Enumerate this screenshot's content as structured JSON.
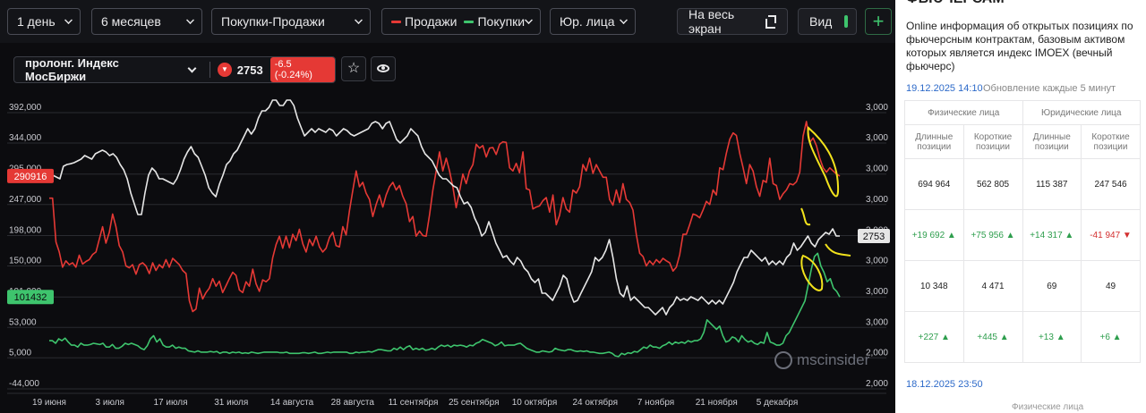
{
  "toolbar": {
    "period": "1 день",
    "range": "6 месяцев",
    "mode": "Покупки-Продажи",
    "legend_sell": "Продажи",
    "legend_buy": "Покупки",
    "entity": "Юр. лица",
    "fullscreen": "На весь экран",
    "view": "Вид",
    "add": "+"
  },
  "symbol": {
    "name": "пролонг. Индекс МосБиржи",
    "price": "2753",
    "change": "-6.5 (-0.24%)"
  },
  "colors": {
    "sell": "#e53935",
    "buy": "#3ec46d",
    "price": "#e6e6e6",
    "highlight": "#f2e21c"
  },
  "watermark": "mscinsider",
  "chart_data": {
    "type": "line",
    "x_ticks": [
      "19 июня",
      "3 июля",
      "17 июля",
      "31 июля",
      "14 августа",
      "28 августа",
      "11 сентября",
      "25 сентября",
      "10 октября",
      "24 октября",
      "7 ноября",
      "21 ноября",
      "5 декабря"
    ],
    "left_axis_ticks": [
      "392,000",
      "344,000",
      "295,000",
      "247,000",
      "198,000",
      "150,000",
      "101,000",
      "53,000",
      "5,000",
      "-44,000"
    ],
    "left_axis_values": [
      392000,
      344000,
      295000,
      247000,
      198000,
      150000,
      101000,
      53000,
      5000,
      -44000
    ],
    "right_axis_ticks": [
      "3,000",
      "3,000",
      "3,000",
      "3,000",
      "3,000",
      "3,000",
      "3,000",
      "3,000",
      "2,000",
      "2,000"
    ],
    "ylim_left": [
      -44000,
      392000
    ],
    "price_ylim": [
      2400,
      3150
    ],
    "labels": {
      "sell_last": "290916",
      "buy_last": "101432",
      "price_last": "2753"
    },
    "series": [
      {
        "name": "Продажи",
        "axis": "left",
        "values": [
          257000,
          257000,
          188000,
          172000,
          148000,
          158000,
          152000,
          155000,
          148000,
          167000,
          153000,
          157000,
          160000,
          168000,
          172000,
          192000,
          212000,
          186000,
          203000,
          232000,
          212000,
          182000,
          172000,
          150000,
          147000,
          152000,
          137000,
          152000,
          155000,
          150000,
          138000,
          155000,
          143000,
          152000,
          147000,
          160000,
          148000,
          162000,
          157000,
          152000,
          143000,
          138000,
          95000,
          78000,
          82000,
          115000,
          98000,
          108000,
          115000,
          130000,
          118000,
          126000,
          108000,
          119000,
          130000,
          140000,
          135000,
          112000,
          108000,
          125000,
          118000,
          145000,
          122000,
          110000,
          128000,
          125000,
          130000,
          163000,
          184000,
          197000,
          178000,
          197000,
          179000,
          200000,
          190000,
          208000,
          185000,
          172000,
          192000,
          182000,
          197000,
          180000,
          172000,
          178000,
          195000,
          203000,
          182000,
          180000,
          212000,
          199000,
          237000,
          269000,
          300000,
          275000,
          282000,
          265000,
          255000,
          228000,
          247000,
          262000,
          243000,
          262000,
          275000,
          282000,
          270000,
          277000,
          260000,
          248000,
          220000,
          228000,
          197000,
          205000,
          198000,
          197000,
          230000,
          270000,
          300000,
          330000,
          300000,
          320000,
          300000,
          275000,
          242000,
          268000,
          295000,
          280000,
          300000,
          310000,
          342000,
          336000,
          340000,
          322000,
          336000,
          337000,
          326000,
          342000,
          346000,
          345000,
          305000,
          300000,
          312000,
          297000,
          330000,
          272000,
          270000,
          240000,
          243000,
          245000,
          253000,
          258000,
          235000,
          262000,
          215000,
          230000,
          258000,
          240000,
          235000,
          270000,
          265000,
          275000,
          310000,
          300000,
          320000,
          296000,
          310000,
          300000,
          290000,
          290000,
          255000,
          246000,
          270000,
          250000,
          280000,
          255000,
          250000,
          238000,
          200000,
          170000,
          165000,
          150000,
          158000,
          152000,
          160000,
          155000,
          162000,
          158000,
          155000,
          142000,
          148000,
          168000,
          200000,
          200000,
          215000,
          232000,
          230000,
          226000,
          238000,
          252000,
          247000,
          270000,
          262000,
          305000,
          302000,
          328000,
          350000,
          360000,
          356000,
          328000,
          305000,
          280000,
          310000,
          300000,
          275000,
          260000,
          285000,
          282000,
          320000,
          280000,
          277000,
          255000,
          264000,
          270000,
          280000,
          278000,
          283000,
          298000,
          355000,
          378000,
          345000,
          352000,
          340000,
          320000,
          305000,
          298000,
          305000,
          300000,
          295000,
          292000
        ]
      },
      {
        "name": "Покупки",
        "axis": "left",
        "values": [
          32000,
          32000,
          28000,
          35000,
          32000,
          36000,
          30000,
          25000,
          25000,
          22000,
          28000,
          25000,
          25000,
          26000,
          28000,
          27000,
          26000,
          28000,
          22000,
          22000,
          26000,
          20000,
          20000,
          23000,
          28000,
          26000,
          28000,
          26000,
          24000,
          20000,
          18000,
          24000,
          35000,
          40000,
          30000,
          35000,
          25000,
          22000,
          22000,
          25000,
          20000,
          22000,
          20000,
          20000,
          16000,
          15000,
          14000,
          16000,
          14000,
          14000,
          14000,
          15000,
          14000,
          15000,
          12000,
          14000,
          14000,
          12000,
          14000,
          13000,
          14000,
          12000,
          13000,
          12000,
          14000,
          13000,
          12000,
          13000,
          14000,
          14000,
          14000,
          14000,
          14000,
          13000,
          13000,
          14000,
          12000,
          12000,
          12000,
          12000,
          13000,
          13000,
          12000,
          13000,
          14000,
          12000,
          12000,
          13000,
          14000,
          13000,
          14000,
          14000,
          14000,
          14000,
          14000,
          12000,
          12000,
          14000,
          13000,
          14000,
          14000,
          15000,
          14000,
          16000,
          18000,
          18000,
          17000,
          16000,
          16000,
          20000,
          18000,
          22000,
          18000,
          22000,
          24000,
          18000,
          20000,
          18000,
          20000,
          17000,
          18000,
          20000,
          18000,
          22000,
          25000,
          23000,
          25000,
          22000,
          25000,
          24000,
          25000,
          24000,
          22000,
          25000,
          24000,
          28000,
          30000,
          34000,
          32000,
          30000,
          28000,
          24000,
          26000,
          30000,
          24000,
          25000,
          25000,
          25000,
          27000,
          28000,
          24000,
          20000,
          18000,
          16000,
          14000,
          14000,
          16000,
          15000,
          14000,
          15000,
          20000,
          18000,
          17000,
          16000,
          18000,
          18000,
          16000,
          15000,
          16000,
          15000,
          16000,
          14000,
          14000,
          13000,
          12000,
          12000,
          13000,
          14000,
          12000,
          8000,
          7000,
          12000,
          10000,
          13000,
          12000,
          15000,
          14000,
          18000,
          22000,
          20000,
          25000,
          22000,
          22000,
          20000,
          24000,
          26000,
          30000,
          26000,
          30000,
          28000,
          30000,
          28000,
          32000,
          30000,
          32000,
          32000,
          35000,
          45000,
          65000,
          60000,
          55000,
          50000,
          55000,
          40000,
          30000,
          32000,
          38000,
          36000,
          30000,
          40000,
          34000,
          30000,
          32000,
          28000,
          26000,
          30000,
          28000,
          45000,
          30000,
          28000,
          25000,
          25000,
          28000,
          40000,
          45000,
          55000,
          65000,
          75000,
          85000,
          95000,
          120000,
          145000,
          165000,
          170000,
          150000,
          140000,
          125000,
          130000,
          115000,
          110000,
          101000
        ]
      },
      {
        "name": "price",
        "axis": "right",
        "values": [
          2930,
          2930,
          2925,
          2920,
          2955,
          2960,
          2962,
          2965,
          2970,
          2975,
          2985,
          2980,
          2975,
          2990,
          2995,
          3000,
          2995,
          2985,
          2990,
          2980,
          2960,
          2945,
          2920,
          2880,
          2850,
          2820,
          2820,
          2880,
          2930,
          2950,
          2940,
          2920,
          2920,
          2915,
          2910,
          2905,
          2920,
          2945,
          2975,
          2995,
          3010,
          2990,
          2980,
          2955,
          2930,
          2895,
          2880,
          2870,
          2905,
          2930,
          2960,
          2970,
          2990,
          3000,
          3020,
          3040,
          3060,
          3045,
          3060,
          3090,
          3110,
          3110,
          3120,
          3140,
          3140,
          3125,
          3125,
          3140,
          3140,
          3125,
          3090,
          3065,
          3040,
          3050,
          3060,
          3050,
          3060,
          3055,
          3050,
          3060,
          3055,
          3040,
          3050,
          3060,
          3055,
          3045,
          3040,
          3045,
          3050,
          3055,
          3060,
          3075,
          3080,
          3075,
          3060,
          3075,
          3080,
          3055,
          3030,
          3020,
          3030,
          3040,
          3060,
          3050,
          3040,
          3010,
          2990,
          2980,
          2970,
          2950,
          2930,
          2920,
          2920,
          2910,
          2900,
          2895,
          2870,
          2850,
          2855,
          2840,
          2810,
          2790,
          2760,
          2770,
          2800,
          2770,
          2740,
          2720,
          2700,
          2705,
          2690,
          2680,
          2700,
          2690,
          2670,
          2660,
          2640,
          2630,
          2640,
          2600,
          2600,
          2590,
          2580,
          2600,
          2620,
          2650,
          2640,
          2600,
          2575,
          2580,
          2600,
          2620,
          2640,
          2660,
          2700,
          2690,
          2700,
          2720,
          2750,
          2700,
          2640,
          2600,
          2590,
          2620,
          2580,
          2590,
          2580,
          2570,
          2560,
          2560,
          2550,
          2540,
          2550,
          2560,
          2540,
          2560,
          2570,
          2590,
          2580,
          2585,
          2580,
          2590,
          2585,
          2580,
          2590,
          2580,
          2570,
          2580,
          2570,
          2580,
          2570,
          2590,
          2610,
          2630,
          2660,
          2680,
          2700,
          2700,
          2720,
          2710,
          2700,
          2690,
          2700,
          2680,
          2690,
          2680,
          2690,
          2680,
          2700,
          2710,
          2740,
          2720,
          2730,
          2745,
          2760,
          2740,
          2730,
          2750,
          2760,
          2770,
          2765,
          2780,
          2760,
          2760
        ],
        "note": ""
      }
    ]
  },
  "right_panel": {
    "title_cut": "ФЬЮЧЕРСАМ",
    "description": "Online информация об открытых позициях по фьючерсным контрактам, базовым активом которых является индекс IMOEX (вечный фьючерс)",
    "timestamp": "19.12.2025 14:10",
    "update_note": "Обновление каждые 5 минут",
    "group_phys": "Физические лица",
    "group_legal": "Юридические лица",
    "col_long": "Длинные позиции",
    "col_short": "Короткие позиции",
    "rows": [
      [
        "694 964",
        "562 805",
        "115 387",
        "247 546"
      ],
      [
        "+19 692 ▲",
        "+75 956 ▲",
        "+14 317 ▲",
        "-41 947 ▼"
      ],
      [
        "10 348",
        "4 471",
        "69",
        "49"
      ],
      [
        "+227 ▲",
        "+445 ▲",
        "+13 ▲",
        "+6 ▲"
      ]
    ],
    "timestamp2": "18.12.2025 23:50",
    "partial_header": "Физические лица"
  }
}
